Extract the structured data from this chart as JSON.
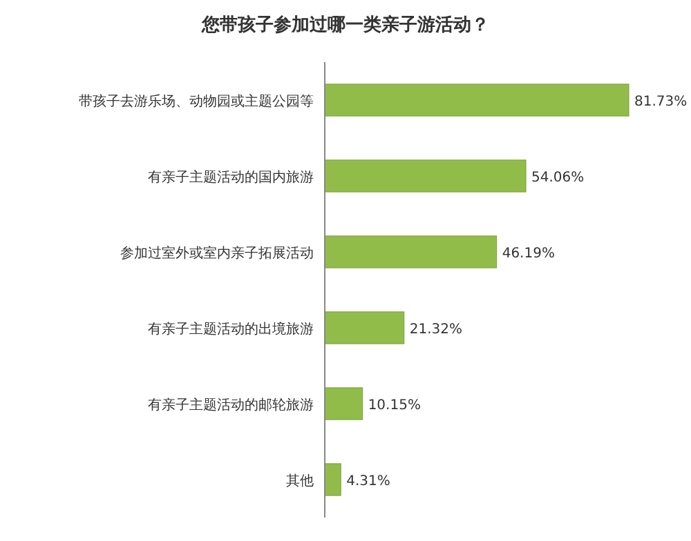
{
  "chart_data": {
    "type": "bar",
    "orientation": "horizontal",
    "title": "您带孩子参加过哪一类亲子游活动？",
    "categories": [
      "带孩子去游乐场、动物园或主题公园等",
      "有亲子主题活动的国内旅游",
      "参加过室外或室内亲子拓展活动",
      "有亲子主题活动的出境旅游",
      "有亲子主题活动的邮轮旅游",
      "其他"
    ],
    "values": [
      81.73,
      54.06,
      46.19,
      21.32,
      10.15,
      4.31
    ],
    "value_labels": [
      "81.73%",
      "54.06%",
      "46.19%",
      "21.32%",
      "10.15%",
      "4.31%"
    ],
    "color": "#92bc4a"
  }
}
